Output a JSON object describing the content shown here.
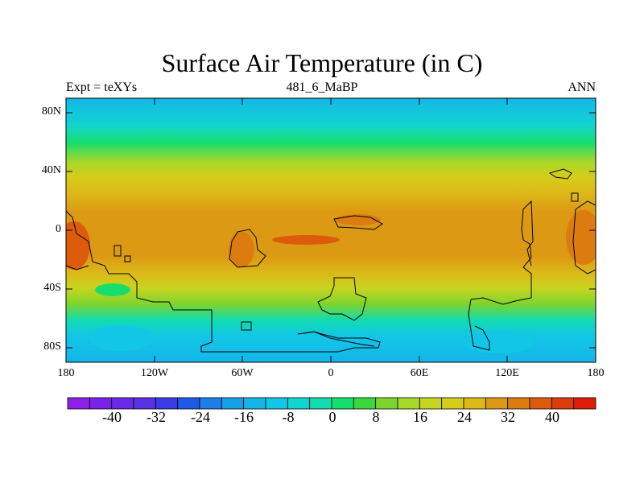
{
  "header": {
    "title": "Surface Air Temperature (in C)",
    "left": "Expt = teXYs",
    "center": "481_6_MaBP",
    "right": "ANN"
  },
  "axes": {
    "y_labels": [
      "80N",
      "40N",
      "0",
      "40S",
      "80S"
    ],
    "x_labels": [
      "180",
      "120W",
      "60W",
      "0",
      "60E",
      "120E",
      "180"
    ]
  },
  "colorbar": {
    "labels": [
      "-40",
      "-32",
      "-24",
      "-16",
      "-8",
      "0",
      "8",
      "16",
      "24",
      "32",
      "40"
    ],
    "colors": [
      "#8c20e6",
      "#7a22e8",
      "#6a2ae8",
      "#5a32e6",
      "#3b3ce6",
      "#1f5ae6",
      "#1c7ee6",
      "#16a0e8",
      "#14b6e8",
      "#12c6e6",
      "#12d4d0",
      "#12dcb0",
      "#16de6c",
      "#3ad83a",
      "#7cd42e",
      "#a8d82a",
      "#c8d420",
      "#d6cc1a",
      "#dcb818",
      "#dc9a14",
      "#dc7c10",
      "#dc5c0c",
      "#dc3c0a",
      "#dc1e08"
    ]
  },
  "chart_data": {
    "type": "heatmap",
    "title": "Surface Air Temperature (in C)",
    "subtitle_left": "Expt = teXYs",
    "subtitle_center": "481_6_MaBP",
    "subtitle_right": "ANN",
    "x_range": [
      -180,
      180
    ],
    "y_range": [
      -90,
      90
    ],
    "x_ticks": [
      "180",
      "120W",
      "60W",
      "0",
      "60E",
      "120E",
      "180"
    ],
    "y_ticks": [
      "80N",
      "40N",
      "0",
      "40S",
      "80S"
    ],
    "zonal_mean_temperature": [
      {
        "lat": 85,
        "value": -10
      },
      {
        "lat": 75,
        "value": -6
      },
      {
        "lat": 68,
        "value": 0
      },
      {
        "lat": 60,
        "value": 6
      },
      {
        "lat": 52,
        "value": 12
      },
      {
        "lat": 45,
        "value": 18
      },
      {
        "lat": 35,
        "value": 24
      },
      {
        "lat": 25,
        "value": 28
      },
      {
        "lat": 10,
        "value": 30
      },
      {
        "lat": 0,
        "value": 30
      },
      {
        "lat": -10,
        "value": 30
      },
      {
        "lat": -25,
        "value": 27
      },
      {
        "lat": -35,
        "value": 22
      },
      {
        "lat": -45,
        "value": 16
      },
      {
        "lat": -52,
        "value": 10
      },
      {
        "lat": -60,
        "value": 4
      },
      {
        "lat": -68,
        "value": -2
      },
      {
        "lat": -78,
        "value": -5
      },
      {
        "lat": -88,
        "value": -8
      }
    ],
    "colorbar_levels": [
      -40,
      -32,
      -24,
      -16,
      -8,
      0,
      8,
      16,
      24,
      32,
      40
    ]
  }
}
